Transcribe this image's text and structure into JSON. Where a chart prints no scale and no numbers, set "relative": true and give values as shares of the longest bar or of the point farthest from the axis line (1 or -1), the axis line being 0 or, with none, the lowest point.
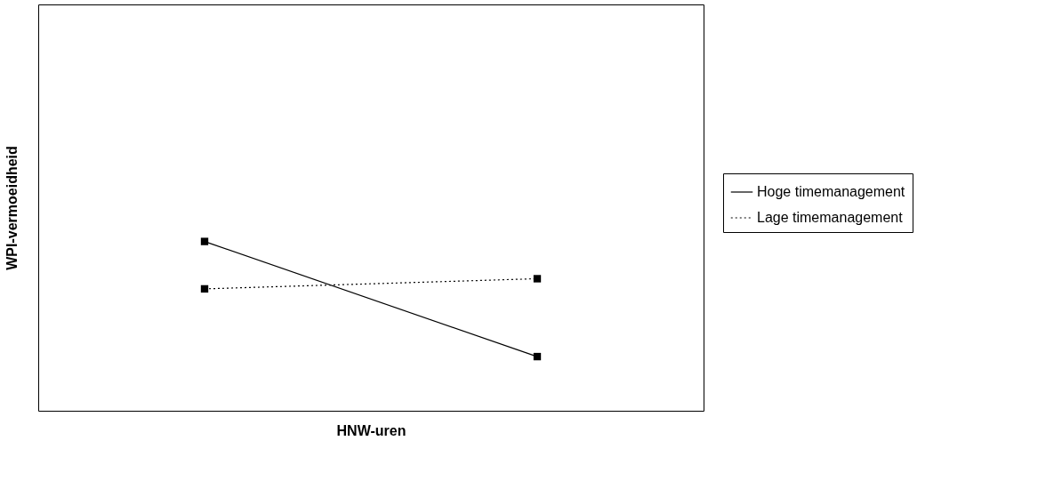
{
  "chart_data": {
    "type": "line",
    "relative": true,
    "xlabel": "HNW-uren",
    "ylabel": "WPI-vermoeidheid",
    "categories": [
      null,
      null
    ],
    "tick_labels": false,
    "grid": false,
    "legend": "right",
    "marker": "square",
    "series": [
      {
        "name": "Hoge timemanagement",
        "color": "#000000",
        "line_style": "solid",
        "values": [
          1,
          0.32
        ]
      },
      {
        "name": "Lage timemanagement",
        "color": "#000000",
        "line_style": "dotted",
        "values": [
          0.72,
          0.78
        ]
      }
    ]
  }
}
